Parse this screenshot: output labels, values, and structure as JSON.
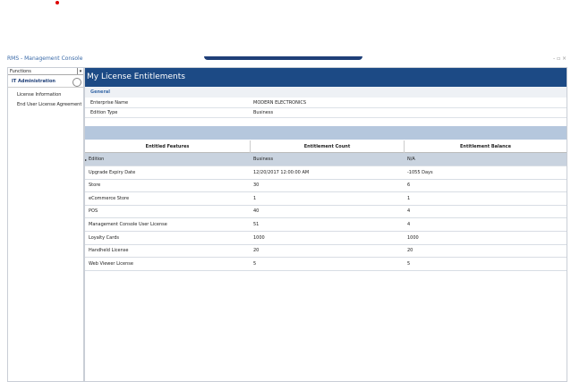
{
  "window": {
    "title": "RMS - Management Console"
  },
  "sidebar": {
    "dropdown": "Functions",
    "section": "IT Administration",
    "items": [
      "License Information",
      "End User License Agreement"
    ]
  },
  "main": {
    "title": "My License Entitlements",
    "general": {
      "heading": "General",
      "fields": [
        {
          "label": "Enterprise Name",
          "value": "MODERN ELECTRONICS"
        },
        {
          "label": "Edition Type",
          "value": "Business"
        }
      ]
    },
    "table": {
      "columns": [
        "Entitled Features",
        "Entitlement Count",
        "Entitlement Balance"
      ],
      "rows": [
        [
          "Edition",
          "Business",
          "N/A"
        ],
        [
          "Upgrade Expiry Date",
          "12/20/2017 12:00:00 AM",
          "-1055 Days"
        ],
        [
          "Store",
          "30",
          "6"
        ],
        [
          "eCommerce Store",
          "1",
          "1"
        ],
        [
          "POS",
          "40",
          "4"
        ],
        [
          "Management Console User License",
          "51",
          "4"
        ],
        [
          "Loyalty Cards",
          "1000",
          "1000"
        ],
        [
          "Handheld License",
          "20",
          "20"
        ],
        [
          "Web Viewer License",
          "5",
          "5"
        ]
      ]
    }
  }
}
